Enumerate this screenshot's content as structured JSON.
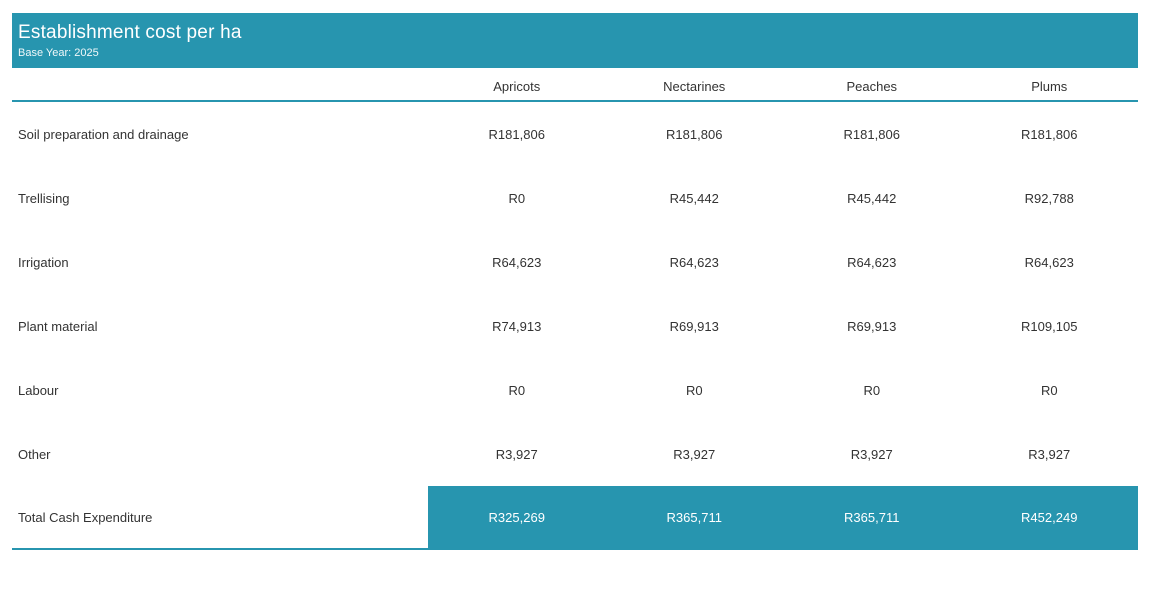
{
  "header": {
    "title": "Establishment cost per ha",
    "subtitle": "Base Year: 2025"
  },
  "colors": {
    "accent": "#2795AF",
    "text": "#333333",
    "total_text": "#FFFFFF"
  },
  "table": {
    "columns": [
      "Apricots",
      "Nectarines",
      "Peaches",
      "Plums"
    ],
    "rows": [
      {
        "label": "Soil preparation and drainage",
        "values": [
          "R181,806",
          "R181,806",
          "R181,806",
          "R181,806"
        ]
      },
      {
        "label": "Trellising",
        "values": [
          "R0",
          "R45,442",
          "R45,442",
          "R92,788"
        ]
      },
      {
        "label": "Irrigation",
        "values": [
          "R64,623",
          "R64,623",
          "R64,623",
          "R64,623"
        ]
      },
      {
        "label": "Plant material",
        "values": [
          "R74,913",
          "R69,913",
          "R69,913",
          "R109,105"
        ]
      },
      {
        "label": "Labour",
        "values": [
          "R0",
          "R0",
          "R0",
          "R0"
        ]
      },
      {
        "label": "Other",
        "values": [
          "R3,927",
          "R3,927",
          "R3,927",
          "R3,927"
        ]
      }
    ],
    "total_row": {
      "label": "Total Cash Expenditure",
      "values": [
        "R325,269",
        "R365,711",
        "R365,711",
        "R452,249"
      ]
    }
  },
  "chart_data": {
    "type": "table",
    "title": "Establishment cost per ha",
    "subtitle": "Base Year: 2025",
    "currency": "R",
    "columns": [
      "Apricots",
      "Nectarines",
      "Peaches",
      "Plums"
    ],
    "rows": [
      {
        "category": "Soil preparation and drainage",
        "values": [
          181806,
          181806,
          181806,
          181806
        ]
      },
      {
        "category": "Trellising",
        "values": [
          0,
          45442,
          45442,
          92788
        ]
      },
      {
        "category": "Irrigation",
        "values": [
          64623,
          64623,
          64623,
          64623
        ]
      },
      {
        "category": "Plant material",
        "values": [
          74913,
          69913,
          69913,
          109105
        ]
      },
      {
        "category": "Labour",
        "values": [
          0,
          0,
          0,
          0
        ]
      },
      {
        "category": "Other",
        "values": [
          3927,
          3927,
          3927,
          3927
        ]
      }
    ],
    "total": {
      "category": "Total Cash Expenditure",
      "values": [
        325269,
        365711,
        365711,
        452249
      ]
    }
  }
}
